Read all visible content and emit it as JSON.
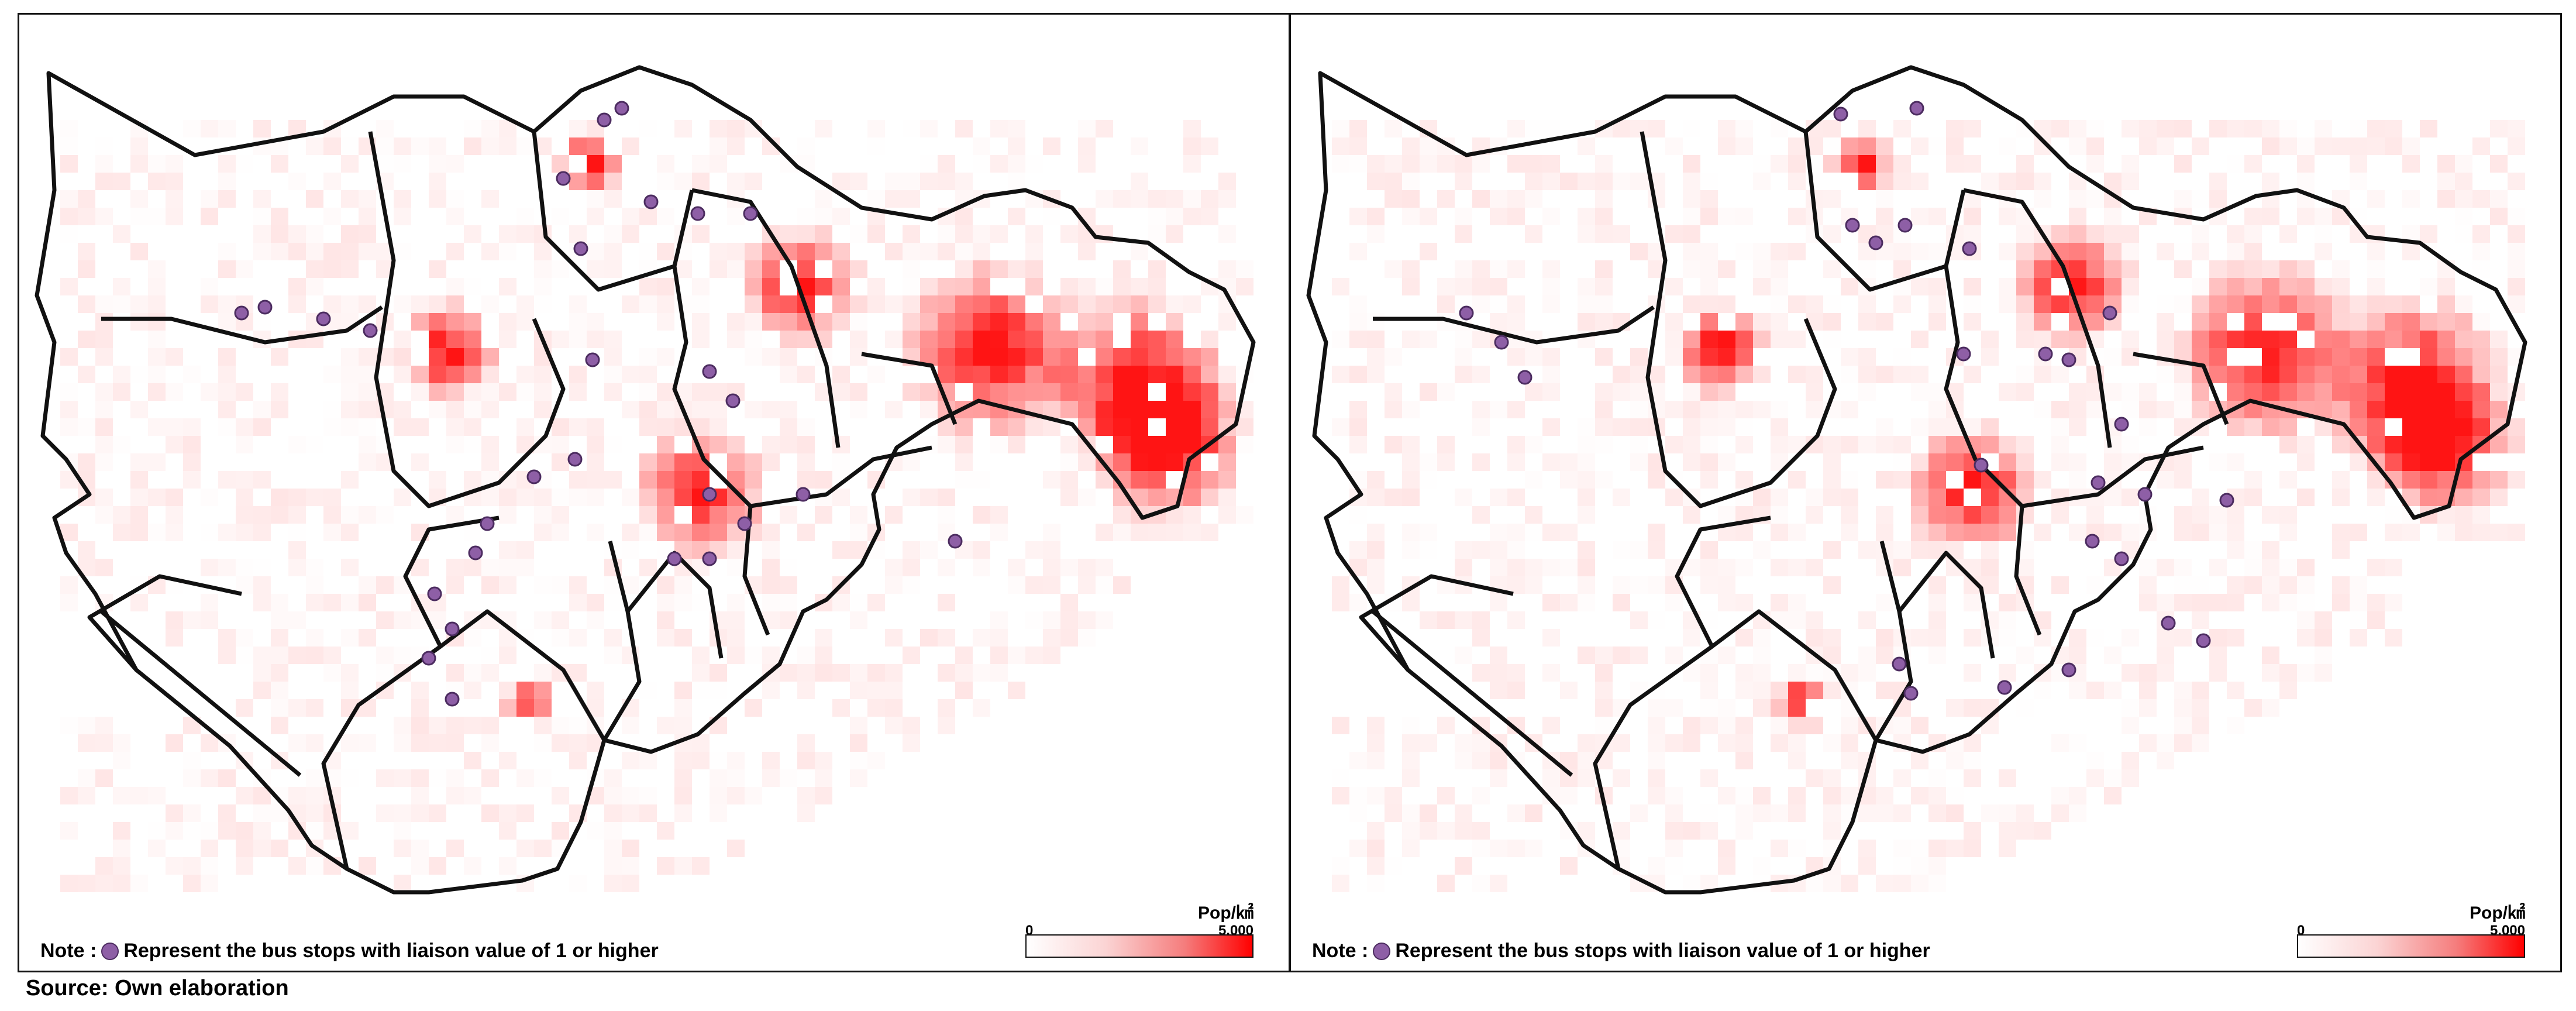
{
  "panels": [
    {
      "name": "left-map",
      "note_prefix": "Note : ",
      "note_text": "Represent the bus stops with liaison value of 1 or higher",
      "legend": {
        "unit": "Pop/㎢",
        "min": "0",
        "max": "5,000"
      }
    },
    {
      "name": "right-map",
      "note_prefix": "Note : ",
      "note_text": "Represent the bus stops with liaison value of 1 or higher",
      "legend": {
        "unit": "Pop/㎢",
        "min": "0",
        "max": "5,000"
      }
    }
  ],
  "source": "Source: Own elaboration",
  "colors": {
    "density_low": "#ffffff",
    "density_high": "#ff0000",
    "bus_stop_fill": "#8e5fa6",
    "bus_stop_stroke": "#4c2c60",
    "boundary": "#111111"
  }
}
